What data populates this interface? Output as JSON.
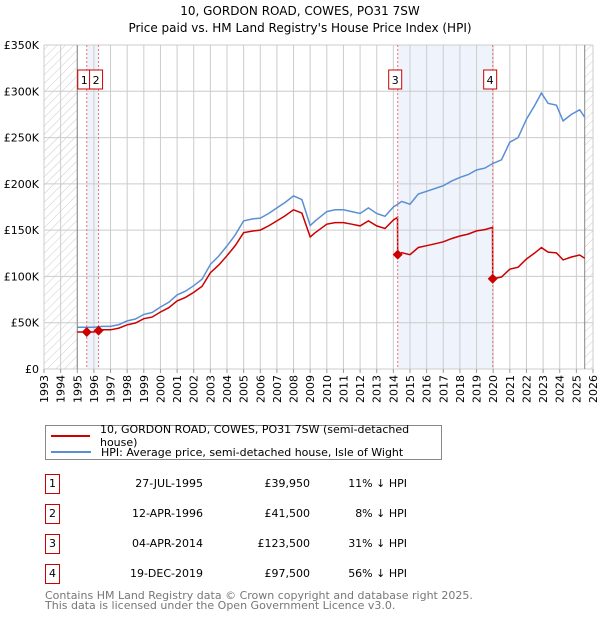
{
  "chart_data": {
    "type": "line",
    "title": "10, GORDON ROAD, COWES, PO31 7SW",
    "subtitle": "Price paid vs. HM Land Registry's House Price Index (HPI)",
    "xlabel": "",
    "ylabel": "",
    "xlim": [
      1993,
      2026
    ],
    "ylim": [
      0,
      350000
    ],
    "y_ticks": [
      0,
      50000,
      100000,
      150000,
      200000,
      250000,
      300000,
      350000
    ],
    "y_tick_labels": [
      "£0",
      "£50K",
      "£100K",
      "£150K",
      "£200K",
      "£250K",
      "£300K",
      "£350K"
    ],
    "x_ticks": [
      "1993",
      "1994",
      "1995",
      "1996",
      "1997",
      "1998",
      "1999",
      "2000",
      "2001",
      "2002",
      "2003",
      "2004",
      "2005",
      "2006",
      "2007",
      "2008",
      "2009",
      "2010",
      "2011",
      "2012",
      "2013",
      "2014",
      "2015",
      "2016",
      "2017",
      "2018",
      "2019",
      "2020",
      "2021",
      "2022",
      "2023",
      "2024",
      "2025",
      "2026"
    ],
    "grid": true,
    "hatched_ranges": [
      [
        1993,
        1995
      ],
      [
        2025.5,
        2026
      ]
    ],
    "shaded_ranges": [
      [
        1995.57,
        1996.28
      ],
      [
        2014.26,
        2019.97
      ]
    ],
    "series": [
      {
        "name": "10, GORDON ROAD, COWES, PO31 7SW (semi-detached house)",
        "color": "#cc0000",
        "x": [
          1995.0,
          1995.5,
          1996,
          1996.5,
          1997,
          1997.5,
          1998,
          1998.5,
          1999,
          1999.5,
          2000,
          2000.5,
          2001,
          2001.5,
          2002,
          2002.5,
          2003,
          2003.5,
          2004,
          2004.5,
          2005,
          2005.5,
          2006,
          2006.5,
          2007,
          2007.5,
          2008,
          2008.5,
          2009,
          2009.3,
          2010,
          2010.5,
          2011,
          2011.5,
          2012,
          2012.5,
          2013,
          2013.5,
          2014,
          2014.25,
          2014.26,
          2014.5,
          2015,
          2015.5,
          2016,
          2016.5,
          2017,
          2017.5,
          2018,
          2018.5,
          2019,
          2019.5,
          2019.96,
          2019.97,
          2020.5,
          2021,
          2021.5,
          2022,
          2022.5,
          2022.9,
          2023.3,
          2023.8,
          2024.2,
          2024.7,
          2025.2,
          2025.5
        ],
        "values": [
          40000,
          40000,
          40000,
          42300,
          42300,
          44200,
          47800,
          49700,
          54300,
          56100,
          61600,
          66200,
          73600,
          77300,
          82800,
          89200,
          104000,
          112200,
          122400,
          133400,
          147200,
          149000,
          150000,
          154600,
          160000,
          165600,
          172000,
          168400,
          142600,
          147200,
          156400,
          158200,
          158200,
          156400,
          154600,
          160000,
          154600,
          151800,
          161000,
          163800,
          123500,
          125600,
          123500,
          131200,
          133200,
          135300,
          137400,
          140900,
          143700,
          145700,
          149200,
          150600,
          153000,
          97500,
          99400,
          107800,
          110000,
          118800,
          125400,
          131100,
          126300,
          125400,
          117900,
          121000,
          123200,
          119700
        ]
      },
      {
        "name": "HPI: Average price, semi-detached house, Isle of Wight",
        "color": "#5b8fd4",
        "x": [
          1995.0,
          1995.5,
          1996,
          1996.5,
          1997,
          1997.5,
          1998,
          1998.5,
          1999,
          1999.5,
          2000,
          2000.5,
          2001,
          2001.5,
          2002,
          2002.5,
          2003,
          2003.5,
          2004,
          2004.5,
          2005,
          2005.5,
          2006,
          2006.5,
          2007,
          2007.5,
          2008,
          2008.5,
          2009,
          2009.3,
          2010,
          2010.5,
          2011,
          2011.5,
          2012,
          2012.5,
          2013,
          2013.5,
          2014,
          2014.26,
          2014.5,
          2015,
          2015.5,
          2016,
          2016.5,
          2017,
          2017.5,
          2018,
          2018.5,
          2019,
          2019.5,
          2019.97,
          2020.5,
          2021,
          2021.5,
          2022,
          2022.5,
          2022.9,
          2023.3,
          2023.8,
          2024.2,
          2024.7,
          2025.2,
          2025.5
        ],
        "values": [
          45000,
          45000,
          45000,
          46000,
          46000,
          48000,
          52000,
          54000,
          59000,
          61000,
          67000,
          72000,
          80000,
          84000,
          90000,
          97000,
          113000,
          122000,
          133000,
          145000,
          160000,
          162000,
          163000,
          168000,
          174000,
          180000,
          187000,
          183000,
          155000,
          160000,
          170000,
          172000,
          172000,
          170000,
          168000,
          174000,
          168000,
          165000,
          175000,
          178000,
          181000,
          178000,
          189000,
          192000,
          195000,
          198000,
          203000,
          207000,
          210000,
          215000,
          217000,
          222000,
          226000,
          245000,
          250000,
          270000,
          285000,
          298000,
          287000,
          285000,
          268000,
          275000,
          280000,
          272000
        ]
      }
    ],
    "sales": [
      {
        "label": "1",
        "x": 1995.57,
        "value": 39950,
        "date": "27-JUL-1995",
        "price": "£39,950",
        "hpi": "11% ↓ HPI"
      },
      {
        "label": "2",
        "x": 1996.28,
        "value": 41500,
        "date": "12-APR-1996",
        "price": "£41,500",
        "hpi": "8% ↓ HPI"
      },
      {
        "label": "3",
        "x": 2014.26,
        "value": 123500,
        "date": "04-APR-2014",
        "price": "£123,500",
        "hpi": "31% ↓ HPI"
      },
      {
        "label": "4",
        "x": 2019.97,
        "value": 97500,
        "date": "19-DEC-2019",
        "price": "£97,500",
        "hpi": "56% ↓ HPI"
      }
    ],
    "legend_position": "below"
  },
  "footer": {
    "line1": "Contains HM Land Registry data © Crown copyright and database right 2025.",
    "line2": "This data is licensed under the Open Government Licence v3.0."
  }
}
